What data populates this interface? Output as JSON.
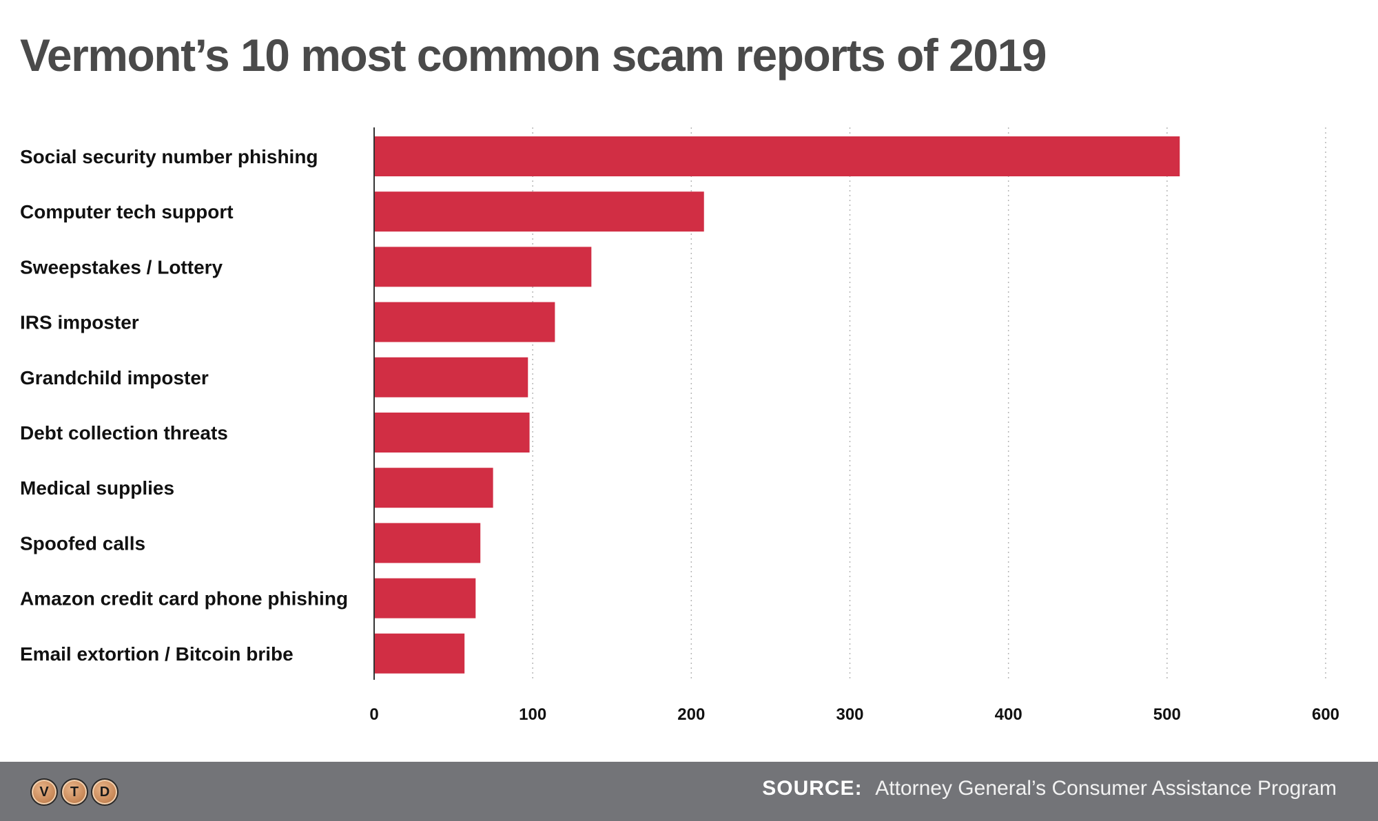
{
  "chart_data": {
    "type": "bar",
    "orientation": "horizontal",
    "title": "Vermont’s 10 most common scam reports of 2019",
    "xlabel": "",
    "ylabel": "",
    "categories": [
      "Social security number phishing",
      "Computer tech support",
      "Sweepstakes / Lottery",
      "IRS imposter",
      "Grandchild imposter",
      "Debt collection threats",
      "Medical supplies",
      "Spoofed calls",
      "Amazon credit card phone phishing",
      "Email extortion / Bitcoin bribe"
    ],
    "values": [
      508,
      208,
      137,
      114,
      97,
      98,
      75,
      67,
      64,
      57
    ],
    "xlim": [
      0,
      600
    ],
    "ticks": [
      0,
      100,
      200,
      300,
      400,
      500,
      600
    ],
    "tick_labels": [
      "0",
      "100",
      "200",
      "300",
      "400",
      "500",
      "600"
    ],
    "grid": true,
    "grid_style": "dotted vertical",
    "bar_color": "#d12e44",
    "legend": "none"
  },
  "footer": {
    "source_label": "SOURCE:",
    "source_text": "Attorney General’s Consumer Assistance Program",
    "logo_letters": [
      "V",
      "T",
      "D"
    ],
    "background_color": "#737478"
  }
}
